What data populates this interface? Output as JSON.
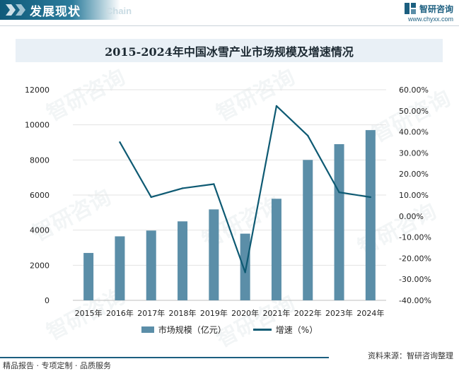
{
  "header": {
    "title": "发展现状",
    "subtitle": "Chain",
    "brand_name": "智研咨询",
    "brand_url": "www.chyxx.com"
  },
  "watermark_text": "智研咨询",
  "colors": {
    "header": "#1c5f80",
    "bar": "#5b8ea8",
    "line": "#0e5a73",
    "title_bg": "#e9f0f6"
  },
  "chart_data": {
    "type": "bar",
    "title": "2015-2024年中国冰雪产业市场规模及增速情况",
    "categories": [
      "2015年",
      "2016年",
      "2017年",
      "2018年",
      "2019年",
      "2020年",
      "2021年",
      "2022年",
      "2023年",
      "2024年"
    ],
    "series": [
      {
        "name": "市场规模（亿元）",
        "type": "bar",
        "axis": "left",
        "values": [
          2700,
          3647,
          3976,
          4500,
          5182,
          3800,
          5788,
          8000,
          8900,
          9700
        ]
      },
      {
        "name": "增速（%）",
        "type": "line",
        "axis": "right",
        "values": [
          null,
          35.1,
          9.0,
          13.2,
          15.2,
          -26.7,
          52.3,
          38.2,
          11.3,
          9.0
        ]
      }
    ],
    "y_left": {
      "min": 0,
      "max": 12000,
      "ticks": [
        "0",
        "2000",
        "4000",
        "6000",
        "8000",
        "10000",
        "12000"
      ]
    },
    "y_right": {
      "min": -40,
      "max": 60,
      "ticks": [
        "-40.00%",
        "-30.00%",
        "-20.00%",
        "-10.00%",
        "0.00%",
        "10.00%",
        "20.00%",
        "30.00%",
        "40.00%",
        "50.00%",
        "60.00%"
      ]
    },
    "legend": {
      "bar_label": "市场规模（亿元）",
      "line_label": "增速（%）",
      "position": "bottom"
    },
    "grid": true
  },
  "footer": {
    "left": "精品报告 · 专项定制 · 品质服务",
    "right": "资料来源：智研咨询整理"
  }
}
